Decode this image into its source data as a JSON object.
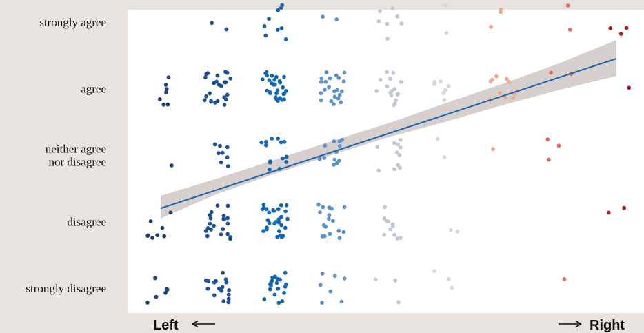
{
  "chart_data": {
    "type": "scatter",
    "title": "",
    "xlabel": "",
    "ylabel": "",
    "x_left_label": "Left",
    "x_right_label": "Right",
    "y_categories": [
      "strongly disagree",
      "disagree",
      "neither agree nor disagree",
      "agree",
      "strongly agree"
    ],
    "y_category_lines": [
      [
        "strongly disagree"
      ],
      [
        "disagree"
      ],
      [
        "neither agree",
        "nor disagree"
      ],
      [
        "agree"
      ],
      [
        "strongly agree"
      ]
    ],
    "x_groups": [
      1,
      2,
      3,
      4,
      5,
      6,
      7,
      8,
      9
    ],
    "xlim": [
      0.6,
      9.4
    ],
    "ylim": [
      0.5,
      5.5
    ],
    "grid": false,
    "legend": "none",
    "colors": [
      "#1f3f73",
      "#1c4f94",
      "#1467b4",
      "#5c92cb",
      "#c2c7d8",
      "#d9d6d6",
      "#efa890",
      "#e56a56",
      "#a4201e"
    ],
    "band_color": "#d6cfcb",
    "line_color": "#1b63b1",
    "counts": [
      [
        6,
        17,
        19,
        7,
        3,
        3,
        0,
        1,
        0
      ],
      [
        8,
        21,
        29,
        17,
        11,
        2,
        0,
        0,
        2
      ],
      [
        1,
        8,
        14,
        12,
        11,
        2,
        1,
        3,
        0
      ],
      [
        7,
        25,
        30,
        22,
        16,
        9,
        11,
        2,
        1
      ],
      [
        0,
        2,
        9,
        2,
        7,
        2,
        3,
        2,
        3
      ]
    ],
    "trend": {
      "x": [
        1,
        9
      ],
      "y": [
        2.2,
        4.45
      ]
    },
    "band": {
      "x": [
        1,
        2,
        3,
        4,
        5,
        6,
        7,
        8,
        9
      ],
      "lower": [
        2.05,
        2.42,
        2.72,
        3.0,
        3.27,
        3.5,
        3.75,
        3.98,
        4.19
      ],
      "upper": [
        2.39,
        2.65,
        2.93,
        3.21,
        3.48,
        3.78,
        4.07,
        4.38,
        4.73
      ]
    }
  }
}
